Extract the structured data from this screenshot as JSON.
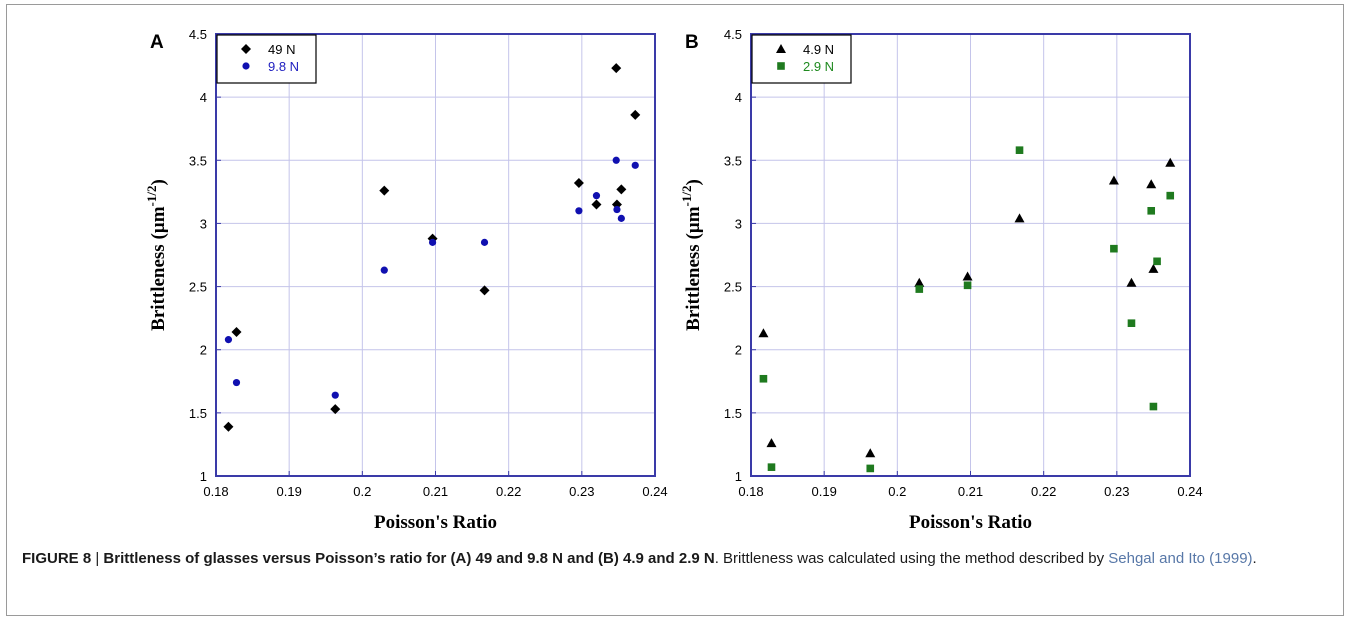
{
  "chart_data": [
    {
      "type": "scatter",
      "panel_label": "A",
      "xlabel": "Poisson's Ratio",
      "ylabel": "Brittleness (µm",
      "ylabel_sup": "-1/2",
      "ylabel_end": ")",
      "xlim": [
        0.18,
        0.24
      ],
      "ylim": [
        1,
        4.5
      ],
      "x_ticks": [
        "0.18",
        "0.19",
        "0.2",
        "0.21",
        "0.22",
        "0.23",
        "0.24"
      ],
      "y_ticks": [
        "1",
        "1.5",
        "2",
        "2.5",
        "3",
        "3.5",
        "4",
        "4.5"
      ],
      "grid": true,
      "legend_position": "top-left",
      "series": [
        {
          "name": "49 N",
          "marker": "diamond",
          "color": "#000000",
          "text_color": "#000000",
          "points": [
            [
              0.1817,
              1.39
            ],
            [
              0.1828,
              2.14
            ],
            [
              0.1963,
              1.53
            ],
            [
              0.203,
              3.26
            ],
            [
              0.2096,
              2.88
            ],
            [
              0.2167,
              2.47
            ],
            [
              0.2296,
              3.32
            ],
            [
              0.232,
              3.15
            ],
            [
              0.2347,
              4.23
            ],
            [
              0.2348,
              3.15
            ],
            [
              0.2354,
              3.27
            ],
            [
              0.2373,
              3.86
            ]
          ]
        },
        {
          "name": "9.8 N",
          "marker": "circle",
          "color": "#1010b0",
          "text_color": "#2020c0",
          "points": [
            [
              0.1817,
              2.08
            ],
            [
              0.1828,
              1.74
            ],
            [
              0.1963,
              1.64
            ],
            [
              0.203,
              2.63
            ],
            [
              0.2096,
              2.85
            ],
            [
              0.2167,
              2.85
            ],
            [
              0.2296,
              3.1
            ],
            [
              0.232,
              3.22
            ],
            [
              0.2347,
              3.5
            ],
            [
              0.2348,
              3.11
            ],
            [
              0.2354,
              3.04
            ],
            [
              0.2373,
              3.46
            ]
          ]
        }
      ]
    },
    {
      "type": "scatter",
      "panel_label": "B",
      "xlabel": "Poisson's Ratio",
      "ylabel": "Brittleness (µm",
      "ylabel_sup": "-1/2",
      "ylabel_end": ")",
      "xlim": [
        0.18,
        0.24
      ],
      "ylim": [
        1,
        4.5
      ],
      "x_ticks": [
        "0.18",
        "0.19",
        "0.2",
        "0.21",
        "0.22",
        "0.23",
        "0.24"
      ],
      "y_ticks": [
        "1",
        "1.5",
        "2",
        "2.5",
        "3",
        "3.5",
        "4",
        "4.5"
      ],
      "grid": true,
      "legend_position": "top-left",
      "series": [
        {
          "name": "4.9 N",
          "marker": "triangle",
          "color": "#000000",
          "text_color": "#000000",
          "points": [
            [
              0.1817,
              2.13
            ],
            [
              0.1828,
              1.26
            ],
            [
              0.1963,
              1.18
            ],
            [
              0.203,
              2.53
            ],
            [
              0.2096,
              2.58
            ],
            [
              0.2167,
              3.04
            ],
            [
              0.2296,
              3.34
            ],
            [
              0.232,
              2.53
            ],
            [
              0.2347,
              3.31
            ],
            [
              0.235,
              2.64
            ],
            [
              0.2373,
              3.48
            ]
          ]
        },
        {
          "name": "2.9 N",
          "marker": "square",
          "color": "#1f7a1f",
          "text_color": "#1f8a1f",
          "points": [
            [
              0.1817,
              1.77
            ],
            [
              0.1828,
              1.07
            ],
            [
              0.1963,
              1.06
            ],
            [
              0.203,
              2.48
            ],
            [
              0.2096,
              2.51
            ],
            [
              0.2167,
              3.58
            ],
            [
              0.2296,
              2.8
            ],
            [
              0.232,
              2.21
            ],
            [
              0.2347,
              3.1
            ],
            [
              0.235,
              1.55
            ],
            [
              0.2355,
              2.7
            ],
            [
              0.2373,
              3.22
            ]
          ]
        }
      ]
    }
  ],
  "caption": {
    "figure_label": "FIGURE 8",
    "separator": " | ",
    "bold_text": "Brittleness of glasses versus Poisson’s ratio for (A) 49 and 9.8 N and (B) 4.9 and 2.9 N",
    "plain_text": ". Brittleness was calculated using the method described by ",
    "reference": "Sehgal and Ito (1999)",
    "end": "."
  },
  "colors": {
    "plot_border": "#3a3aa8",
    "grid": "#c4c4ea",
    "caption_text": "#1a1a1a",
    "reference_link": "#5878a8"
  }
}
